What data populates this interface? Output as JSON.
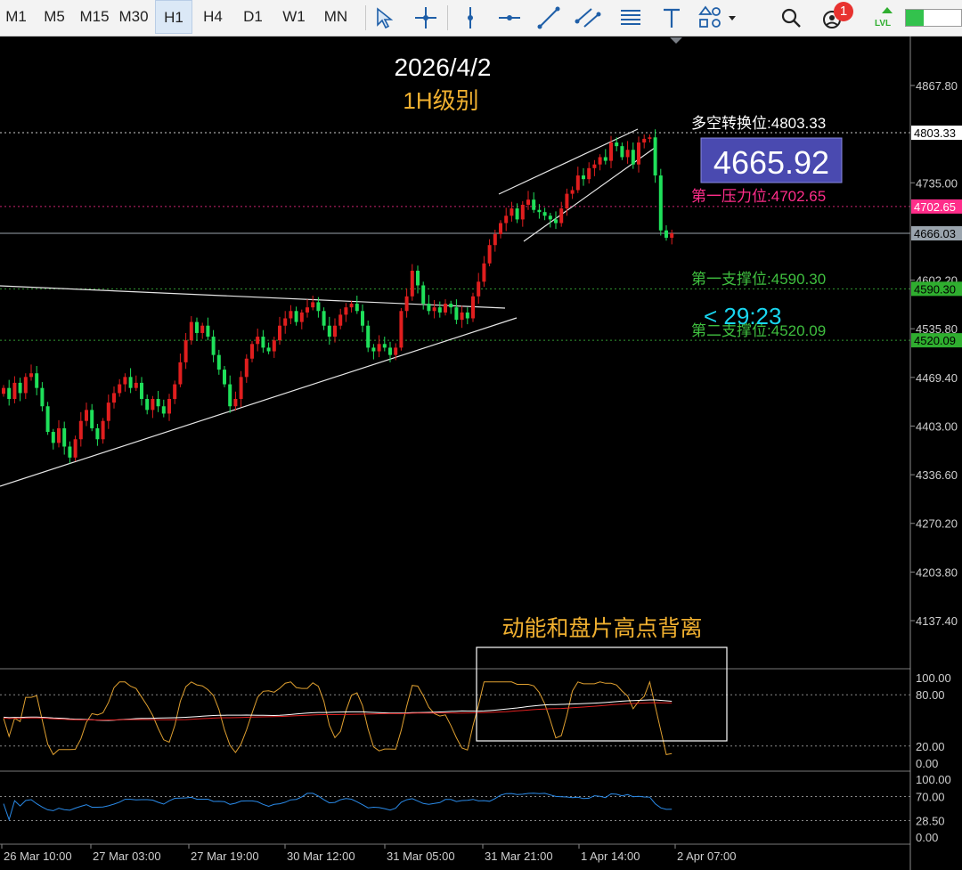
{
  "toolbar": {
    "timeframes": [
      "M1",
      "M5",
      "M15",
      "M30",
      "H1",
      "H4",
      "D1",
      "W1",
      "MN"
    ],
    "active_timeframe": "H1",
    "notification_count": "1",
    "lvl_label": "LVL"
  },
  "chart": {
    "date_title": "2026/4/2",
    "timeframe_title": "1H级别",
    "current_price": "4665.92",
    "countdown": "< 29:23",
    "divergence_note": "动能和盘片高点背离",
    "levels": [
      {
        "label": "多空转换位:",
        "value": "4803.33",
        "tag": "4803.33",
        "price": 4803.33,
        "color": "#ffffff",
        "tag_bg": "#ffffff",
        "tag_fg": "#000000"
      },
      {
        "label": "第一压力位:",
        "value": "4702.65",
        "tag": "4702.65",
        "price": 4702.65,
        "color": "#ff2d8a",
        "tag_bg": "#ff2d8a",
        "tag_fg": "#ffffff"
      },
      {
        "label": "第一支撑位:",
        "value": "4590.30",
        "tag": "4590.30",
        "price": 4590.3,
        "color": "#3fbf3f",
        "tag_bg": "#2fae2f",
        "tag_fg": "#000000"
      },
      {
        "label": "第二支撑位:",
        "value": "4520.09",
        "tag": "4520.09",
        "price": 4520.09,
        "color": "#3fbf3f",
        "tag_bg": "#2fae2f",
        "tag_fg": "#000000"
      }
    ],
    "current_tag": "4666.03",
    "current_tag_price": 4666.03,
    "price_ticks": [
      "4867.80",
      "4735.00",
      "4602.20",
      "4535.80",
      "4469.40",
      "4403.00",
      "4336.60",
      "4270.20",
      "4203.80",
      "4137.40"
    ],
    "price_tick_values": [
      4867.8,
      4735.0,
      4602.2,
      4535.8,
      4469.4,
      4403.0,
      4336.6,
      4270.2,
      4203.8,
      4137.4
    ],
    "price_range": [
      4100,
      4930
    ],
    "osc1_ticks": [
      "100.00",
      "80.00",
      "20.00",
      "0.00"
    ],
    "osc1_tick_values": [
      100,
      80,
      20,
      0
    ],
    "osc2_ticks": [
      "100.00",
      "70.00",
      "28.50",
      "0.00"
    ],
    "osc2_tick_values": [
      100,
      70,
      28.5,
      0
    ],
    "time_labels": [
      "26 Mar 10:00",
      "27 Mar 03:00",
      "27 Mar 19:00",
      "30 Mar 12:00",
      "31 Mar 05:00",
      "31 Mar 21:00",
      "1 Apr 14:00",
      "2 Apr 07:00"
    ]
  },
  "chart_data": {
    "type": "candlestick",
    "closes": [
      4455,
      4440,
      4462,
      4448,
      4470,
      4475,
      4455,
      4430,
      4395,
      4380,
      4400,
      4375,
      4360,
      4385,
      4410,
      4425,
      4400,
      4385,
      4410,
      4435,
      4448,
      4460,
      4470,
      4455,
      4462,
      4440,
      4425,
      4440,
      4430,
      4420,
      4440,
      4460,
      4490,
      4520,
      4545,
      4530,
      4540,
      4525,
      4500,
      4480,
      4460,
      4430,
      4440,
      4470,
      4495,
      4515,
      4525,
      4510,
      4505,
      4520,
      4540,
      4550,
      4560,
      4545,
      4558,
      4565,
      4572,
      4560,
      4540,
      4525,
      4540,
      4555,
      4565,
      4570,
      4560,
      4540,
      4510,
      4505,
      4515,
      4510,
      4500,
      4510,
      4560,
      4580,
      4615,
      4595,
      4570,
      4560,
      4565,
      4558,
      4570,
      4565,
      4548,
      4558,
      4550,
      4580,
      4600,
      4625,
      4650,
      4665,
      4680,
      4690,
      4700,
      4685,
      4705,
      4712,
      4698,
      4695,
      4690,
      4685,
      4680,
      4700,
      4720,
      4725,
      4745,
      4740,
      4755,
      4760,
      4770,
      4765,
      4790,
      4785,
      4770,
      4780,
      4760,
      4790,
      4795,
      4797,
      4745,
      4670,
      4660,
      4666
    ],
    "ylim": [
      4100,
      4930
    ]
  }
}
